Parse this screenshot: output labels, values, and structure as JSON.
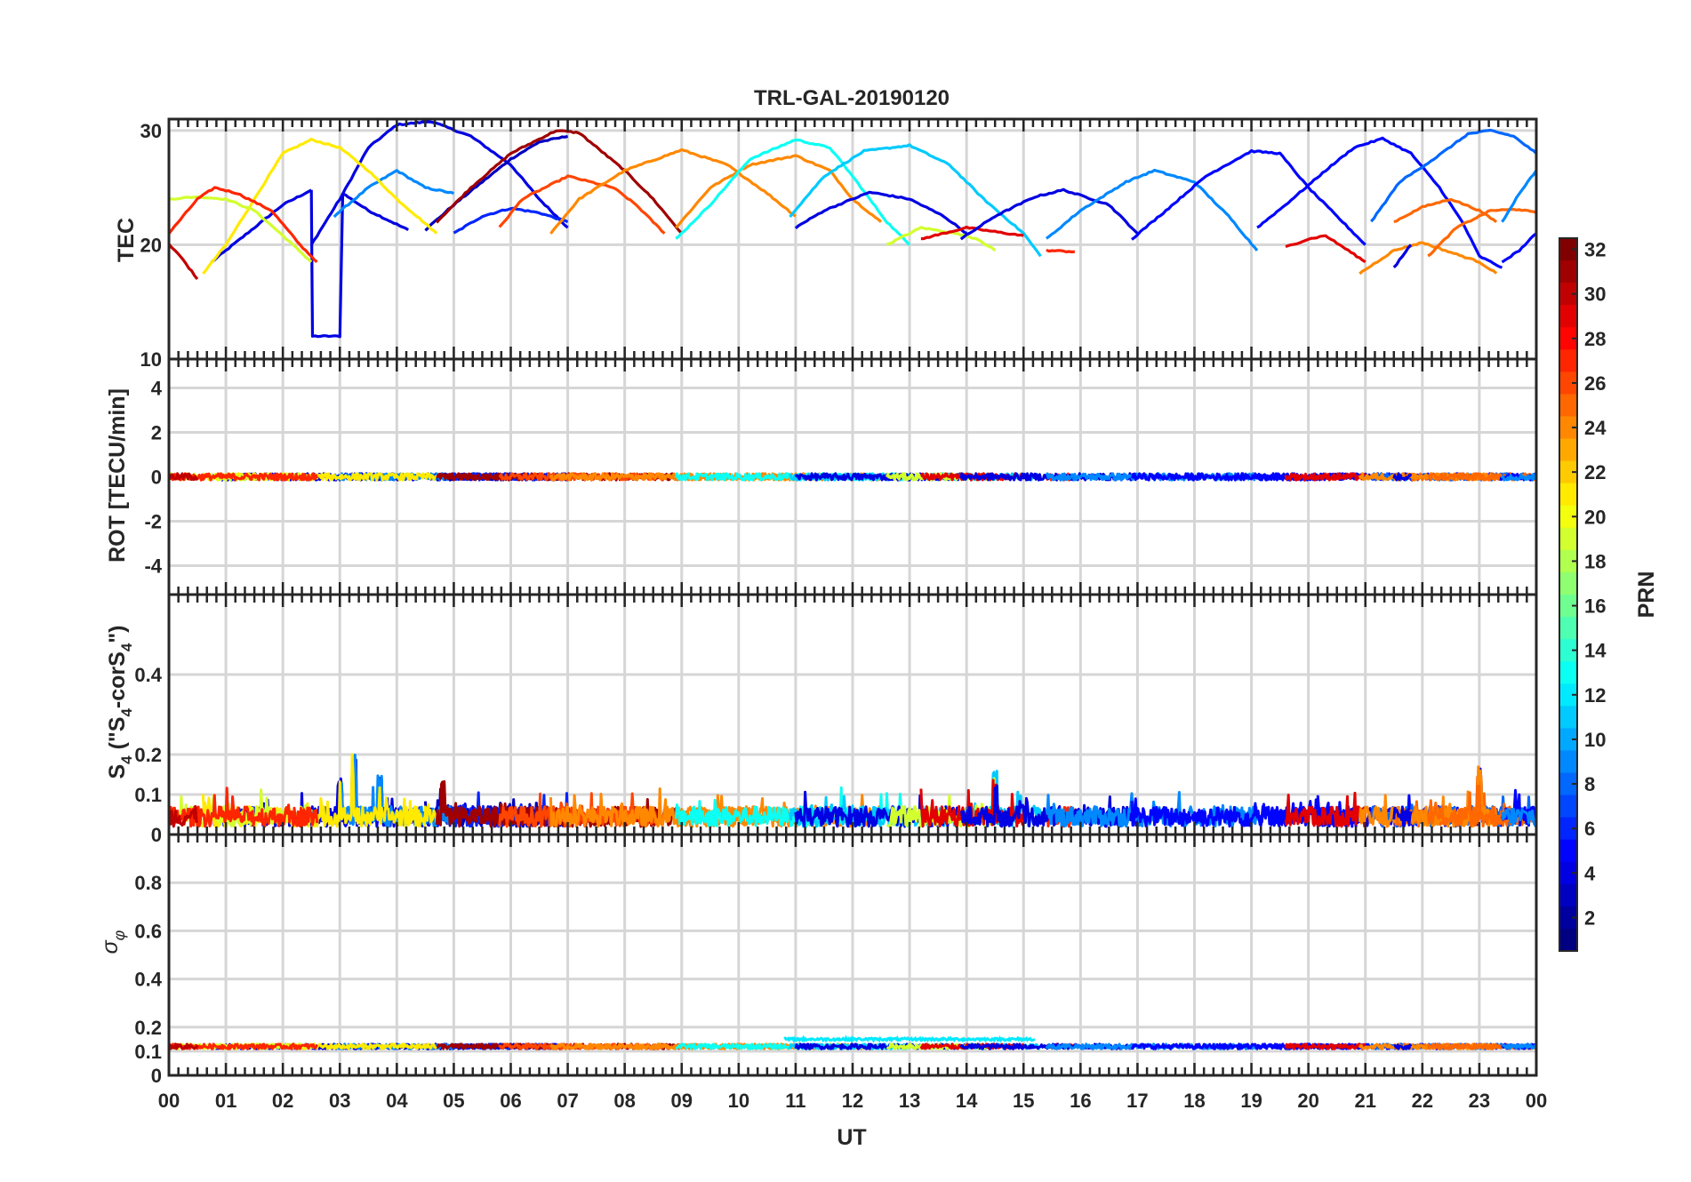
{
  "title": "TRL-GAL-20190120",
  "xlabel": "UT",
  "x_ticks": [
    "00",
    "01",
    "02",
    "03",
    "04",
    "05",
    "06",
    "07",
    "08",
    "09",
    "10",
    "11",
    "12",
    "13",
    "14",
    "15",
    "16",
    "17",
    "18",
    "19",
    "20",
    "21",
    "22",
    "23",
    "00"
  ],
  "panels": [
    {
      "ylabel": "TEC",
      "ylim": [
        10,
        31
      ],
      "ticks": [
        {
          "v": 10,
          "t": "10"
        },
        {
          "v": 20,
          "t": "20"
        },
        {
          "v": 30,
          "t": "30"
        }
      ]
    },
    {
      "ylabel": "ROT [TECU/min]",
      "ylim": [
        -5.3,
        5.3
      ],
      "ticks": [
        {
          "v": -4,
          "t": "-4"
        },
        {
          "v": -2,
          "t": "-2"
        },
        {
          "v": 0,
          "t": "0"
        },
        {
          "v": 2,
          "t": "2"
        },
        {
          "v": 4,
          "t": "4"
        }
      ]
    },
    {
      "ylabel_main": "S",
      "ylabel_sub": "4",
      "ylabel_rest": " (\"S",
      "ylabel_sub2": "4",
      "ylabel_mid": "-corS",
      "ylabel_sub3": "4",
      "ylabel_end": "\")",
      "ylim": [
        0,
        0.6
      ],
      "ticks": [
        {
          "v": 0,
          "t": "0"
        },
        {
          "v": 0.1,
          "t": "0.1"
        },
        {
          "v": 0.2,
          "t": "0.2"
        },
        {
          "v": 0.4,
          "t": "0.4"
        }
      ]
    },
    {
      "ylabel_sigma": "σ",
      "ylabel_phi": "φ",
      "ylim": [
        0,
        1
      ],
      "ticks": [
        {
          "v": 0,
          "t": "0"
        },
        {
          "v": 0.1,
          "t": "0.1"
        },
        {
          "v": 0.2,
          "t": "0.2"
        },
        {
          "v": 0.4,
          "t": "0.4"
        },
        {
          "v": 0.6,
          "t": "0.6"
        },
        {
          "v": 0.8,
          "t": "0.8"
        }
      ]
    }
  ],
  "colorbar": {
    "label": "PRN",
    "range": [
      1,
      32
    ],
    "ticks": [
      2,
      4,
      6,
      8,
      10,
      12,
      14,
      16,
      18,
      20,
      22,
      24,
      26,
      28,
      30,
      32
    ],
    "colormap": "jet"
  },
  "chart_data": {
    "type": "line",
    "title": "TRL-GAL-20190120",
    "xlabel": "UT",
    "x_unit": "hours",
    "xlim": [
      0,
      24
    ],
    "grid": true,
    "color_key": "PRN",
    "tec_arcs": [
      {
        "prn": 4,
        "points": [
          [
            0.75,
            18.5
          ],
          [
            1.5,
            21.5
          ],
          [
            2.0,
            23.5
          ],
          [
            2.5,
            24.8
          ]
        ]
      },
      {
        "prn": 4,
        "points": [
          [
            2.5,
            24.8
          ],
          [
            2.52,
            12.0
          ],
          [
            3.0,
            12.0
          ],
          [
            3.05,
            24.5
          ],
          [
            3.5,
            23.0
          ],
          [
            4.2,
            21.3
          ]
        ]
      },
      {
        "prn": 4,
        "points": [
          [
            2.5,
            20.0
          ],
          [
            3.0,
            24.0
          ],
          [
            3.5,
            28.5
          ],
          [
            4.0,
            30.5
          ],
          [
            4.6,
            30.8
          ],
          [
            5.3,
            29.5
          ],
          [
            6.0,
            27.0
          ],
          [
            6.5,
            24.0
          ],
          [
            7.0,
            21.5
          ]
        ]
      },
      {
        "prn": 3,
        "points": [
          [
            4.5,
            21.3
          ],
          [
            5.0,
            23.5
          ],
          [
            5.5,
            25.5
          ],
          [
            6.0,
            27.5
          ],
          [
            6.5,
            29.0
          ],
          [
            7.0,
            29.5
          ]
        ]
      },
      {
        "prn": 9,
        "points": [
          [
            2.9,
            22.5
          ],
          [
            3.5,
            25.0
          ],
          [
            4.0,
            26.5
          ],
          [
            4.5,
            25.0
          ],
          [
            5.0,
            24.5
          ]
        ]
      },
      {
        "prn": 6,
        "points": [
          [
            5.0,
            21.0
          ],
          [
            5.5,
            22.5
          ],
          [
            6.0,
            23.2
          ],
          [
            6.5,
            22.8
          ],
          [
            7.0,
            22.0
          ]
        ]
      },
      {
        "prn": 21,
        "points": [
          [
            0.6,
            17.5
          ],
          [
            1.0,
            20.0
          ],
          [
            1.5,
            24.0
          ],
          [
            2.0,
            28.0
          ],
          [
            2.5,
            29.2
          ],
          [
            3.0,
            28.5
          ],
          [
            3.5,
            26.5
          ],
          [
            4.0,
            24.0
          ],
          [
            4.7,
            21.0
          ]
        ]
      },
      {
        "prn": 19,
        "points": [
          [
            0.0,
            24.0
          ],
          [
            0.5,
            24.2
          ],
          [
            1.0,
            24.0
          ],
          [
            1.5,
            23.0
          ],
          [
            2.0,
            20.8
          ],
          [
            2.5,
            18.5
          ]
        ]
      },
      {
        "prn": 27,
        "points": [
          [
            0.0,
            21.0
          ],
          [
            0.5,
            24.0
          ],
          [
            0.8,
            25.0
          ],
          [
            1.2,
            24.5
          ],
          [
            1.8,
            23.0
          ],
          [
            2.3,
            20.0
          ],
          [
            2.6,
            18.5
          ]
        ]
      },
      {
        "prn": 30,
        "points": [
          [
            0.0,
            20.0
          ],
          [
            0.2,
            19.0
          ],
          [
            0.5,
            17.0
          ]
        ]
      },
      {
        "prn": 31,
        "points": [
          [
            4.7,
            22.0
          ],
          [
            5.3,
            25.0
          ],
          [
            6.0,
            28.0
          ],
          [
            6.8,
            30.0
          ],
          [
            7.2,
            29.8
          ],
          [
            8.0,
            26.5
          ],
          [
            8.5,
            24.0
          ],
          [
            9.0,
            21.0
          ]
        ]
      },
      {
        "prn": 26,
        "points": [
          [
            5.8,
            21.5
          ],
          [
            6.2,
            24.0
          ],
          [
            7.0,
            26.0
          ],
          [
            7.8,
            25.0
          ],
          [
            8.2,
            23.5
          ],
          [
            8.7,
            21.0
          ]
        ]
      },
      {
        "prn": 24,
        "points": [
          [
            6.7,
            21.0
          ],
          [
            7.2,
            24.0
          ],
          [
            8.0,
            26.5
          ],
          [
            9.0,
            28.3
          ],
          [
            9.8,
            27.0
          ],
          [
            10.5,
            24.5
          ],
          [
            11.0,
            22.5
          ]
        ]
      },
      {
        "prn": 24,
        "points": [
          [
            8.9,
            21.5
          ],
          [
            9.5,
            25.0
          ],
          [
            10.2,
            27.0
          ],
          [
            11.0,
            27.8
          ],
          [
            11.6,
            26.5
          ],
          [
            12.0,
            24.0
          ],
          [
            12.5,
            22.0
          ]
        ]
      },
      {
        "prn": 13,
        "points": [
          [
            8.9,
            20.5
          ],
          [
            9.5,
            23.5
          ],
          [
            10.2,
            27.5
          ],
          [
            11.0,
            29.2
          ],
          [
            11.6,
            28.5
          ],
          [
            12.0,
            26.0
          ],
          [
            12.6,
            22.0
          ],
          [
            13.0,
            20.0
          ]
        ]
      },
      {
        "prn": 11,
        "points": [
          [
            10.9,
            22.5
          ],
          [
            11.5,
            26.0
          ],
          [
            12.2,
            28.2
          ],
          [
            13.0,
            28.7
          ],
          [
            13.7,
            27.0
          ],
          [
            14.3,
            24.0
          ],
          [
            15.0,
            21.0
          ],
          [
            15.3,
            19.0
          ]
        ]
      },
      {
        "prn": 4,
        "points": [
          [
            11.0,
            21.5
          ],
          [
            11.5,
            23.0
          ],
          [
            12.3,
            24.6
          ],
          [
            13.0,
            24.0
          ],
          [
            13.6,
            22.5
          ],
          [
            14.0,
            21.0
          ]
        ]
      },
      {
        "prn": 19,
        "points": [
          [
            12.6,
            20.0
          ],
          [
            13.2,
            21.5
          ],
          [
            13.8,
            21.0
          ],
          [
            14.2,
            20.5
          ],
          [
            14.5,
            19.5
          ]
        ]
      },
      {
        "prn": 29,
        "points": [
          [
            13.2,
            20.5
          ],
          [
            14.0,
            21.5
          ],
          [
            14.7,
            21.0
          ],
          [
            15.0,
            20.8
          ]
        ]
      },
      {
        "prn": 27,
        "points": [
          [
            15.4,
            19.5
          ],
          [
            15.9,
            19.4
          ]
        ]
      },
      {
        "prn": 4,
        "points": [
          [
            13.9,
            20.5
          ],
          [
            14.5,
            22.5
          ],
          [
            15.2,
            24.2
          ],
          [
            15.7,
            24.8
          ],
          [
            16.2,
            24.0
          ],
          [
            16.5,
            23.5
          ],
          [
            17.0,
            21.0
          ]
        ]
      },
      {
        "prn": 9,
        "points": [
          [
            15.4,
            20.5
          ],
          [
            16.0,
            23.0
          ],
          [
            16.8,
            25.5
          ],
          [
            17.3,
            26.5
          ],
          [
            18.0,
            25.5
          ],
          [
            18.6,
            22.5
          ],
          [
            19.1,
            19.5
          ]
        ]
      },
      {
        "prn": 5,
        "points": [
          [
            16.9,
            20.5
          ],
          [
            17.5,
            23.0
          ],
          [
            18.2,
            26.0
          ],
          [
            19.0,
            28.2
          ],
          [
            19.5,
            28.0
          ],
          [
            20.0,
            25.0
          ],
          [
            20.6,
            22.0
          ],
          [
            21.0,
            20.0
          ]
        ]
      },
      {
        "prn": 5,
        "points": [
          [
            19.1,
            21.5
          ],
          [
            19.6,
            23.5
          ],
          [
            20.3,
            26.5
          ],
          [
            20.8,
            28.5
          ],
          [
            21.3,
            29.3
          ],
          [
            21.8,
            28.0
          ],
          [
            22.3,
            25.0
          ],
          [
            22.7,
            22.0
          ],
          [
            23.0,
            19.0
          ],
          [
            23.4,
            18.0
          ]
        ]
      },
      {
        "prn": 8,
        "points": [
          [
            21.1,
            22.0
          ],
          [
            21.6,
            25.5
          ],
          [
            22.2,
            27.5
          ],
          [
            22.8,
            29.7
          ],
          [
            23.2,
            30.0
          ],
          [
            23.6,
            29.5
          ],
          [
            24.0,
            28.0
          ]
        ]
      },
      {
        "prn": 29,
        "points": [
          [
            19.6,
            19.8
          ],
          [
            20.0,
            20.5
          ],
          [
            20.3,
            20.8
          ],
          [
            20.7,
            19.5
          ],
          [
            21.0,
            18.5
          ]
        ]
      },
      {
        "prn": 25,
        "points": [
          [
            21.5,
            22.0
          ],
          [
            22.0,
            23.3
          ],
          [
            22.5,
            24.0
          ],
          [
            23.0,
            23.0
          ],
          [
            23.3,
            22.0
          ]
        ]
      },
      {
        "prn": 24,
        "points": [
          [
            20.9,
            17.5
          ],
          [
            21.5,
            19.5
          ],
          [
            22.0,
            20.2
          ],
          [
            22.4,
            19.5
          ],
          [
            23.0,
            18.5
          ],
          [
            23.3,
            17.5
          ]
        ]
      },
      {
        "prn": 25,
        "points": [
          [
            22.1,
            19.0
          ],
          [
            22.6,
            21.5
          ],
          [
            23.2,
            23.0
          ],
          [
            23.7,
            23.1
          ],
          [
            24.0,
            22.8
          ]
        ]
      },
      {
        "prn": 5,
        "points": [
          [
            23.4,
            18.5
          ],
          [
            23.7,
            19.5
          ],
          [
            24.0,
            21.0
          ]
        ]
      },
      {
        "prn": 9,
        "points": [
          [
            23.4,
            22.0
          ],
          [
            23.7,
            24.5
          ],
          [
            24.0,
            26.5
          ]
        ]
      },
      {
        "prn": 4,
        "points": [
          [
            21.5,
            18.0
          ],
          [
            21.8,
            20.0
          ]
        ]
      }
    ],
    "rot": {
      "ylim": [
        -5.3,
        5.3
      ],
      "typical_value": 0.0,
      "typical_spread": 0.15
    },
    "s4": {
      "ylim": [
        0,
        0.6
      ],
      "typical_value": 0.05,
      "peak_values": [
        [
          3.25,
          0.2
        ],
        [
          3.0,
          0.15
        ],
        [
          3.7,
          0.15
        ],
        [
          4.8,
          0.14
        ],
        [
          14.5,
          0.16
        ],
        [
          23.0,
          0.17
        ]
      ]
    },
    "sigma_phi": {
      "ylim": [
        0,
        1
      ],
      "typical_value": 0.12,
      "elevated": [
        [
          10.8,
          15.2,
          0.15
        ]
      ]
    }
  }
}
